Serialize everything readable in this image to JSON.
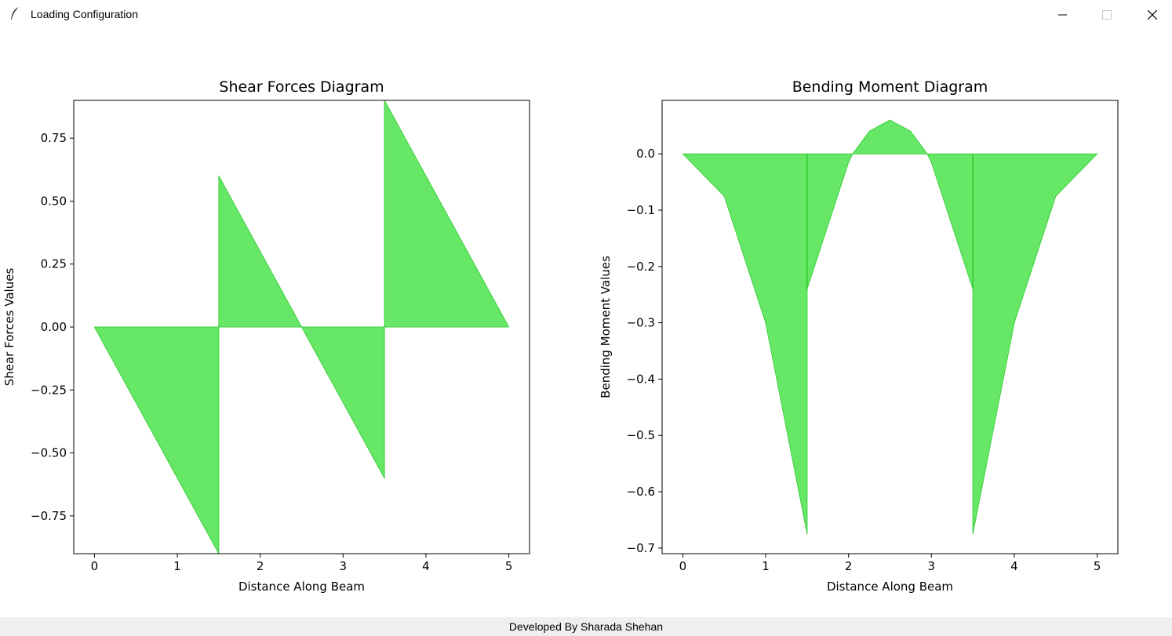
{
  "window": {
    "title": "Loading Configuration",
    "icon": "feather-icon",
    "controls": [
      "minimize-icon",
      "maximize-icon",
      "close-icon"
    ]
  },
  "footer": {
    "text": "Developed By Sharada Shehan"
  },
  "colors": {
    "fill": "#66e866",
    "edge": "#3fcf3f",
    "accent_line": "#22c322"
  },
  "chart_data": [
    {
      "type": "area",
      "title": "Shear Forces Diagram",
      "xlabel": "Distance Along Beam",
      "ylabel": "Shear Forces Values",
      "xlim": [
        -0.25,
        5.25
      ],
      "ylim": [
        -0.9,
        0.9
      ],
      "xticks": [
        0,
        1,
        2,
        3,
        4,
        5
      ],
      "xtick_labels": [
        "0",
        "1",
        "2",
        "3",
        "4",
        "5"
      ],
      "yticks": [
        0.75,
        0.5,
        0.25,
        0,
        -0.25,
        -0.5,
        -0.75
      ],
      "ytick_labels": [
        "0.75",
        "0.50",
        "0.25",
        "0.00",
        "−0.25",
        "−0.50",
        "−0.75"
      ],
      "x": [
        0,
        1.5,
        1.5,
        2.5,
        3.5,
        3.5,
        5
      ],
      "y": [
        0,
        -0.9,
        0.6,
        0,
        -0.6,
        0.9,
        0
      ],
      "grid": false,
      "vlines": []
    },
    {
      "type": "area",
      "title": "Bending Moment Diagram",
      "xlabel": "Distance Along Beam",
      "ylabel": "Bending Moment Values",
      "xlim": [
        -0.25,
        5.25
      ],
      "ylim": [
        -0.71,
        0.095
      ],
      "xticks": [
        0,
        1,
        2,
        3,
        4,
        5
      ],
      "xtick_labels": [
        "0",
        "1",
        "2",
        "3",
        "4",
        "5"
      ],
      "yticks": [
        0,
        -0.1,
        -0.2,
        -0.3,
        -0.4,
        -0.5,
        -0.6,
        -0.7
      ],
      "ytick_labels": [
        "0.0",
        "−0.1",
        "−0.2",
        "−0.3",
        "−0.4",
        "−0.5",
        "−0.6",
        "−0.7"
      ],
      "x": [
        0,
        0.5,
        1.0,
        1.5,
        1.5,
        2.0,
        2.05,
        2.25,
        2.5,
        2.75,
        2.95,
        3.0,
        3.5,
        3.5,
        4.0,
        4.5,
        5.0
      ],
      "y": [
        0,
        -0.075,
        -0.3,
        -0.675,
        -0.24,
        -0.015,
        0,
        0.04,
        0.06,
        0.04,
        0,
        -0.015,
        -0.24,
        -0.675,
        -0.3,
        -0.075,
        0
      ],
      "grid": false,
      "vlines": [
        1.5,
        3.5
      ]
    }
  ]
}
